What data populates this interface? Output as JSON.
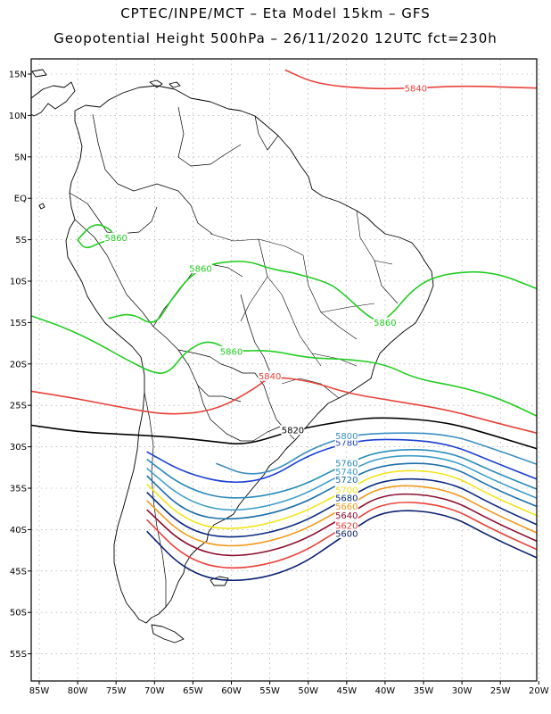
{
  "header": {
    "line1": "CPTEC/INPE/MCT –  Eta Model 15km – GFS",
    "line2": "Geopotential Height 500hPa – 26/11/2020 12UTC fct=230h"
  },
  "axes": {
    "lat_labels": [
      "15N",
      "10N",
      "5N",
      "EQ",
      "5S",
      "10S",
      "15S",
      "20S",
      "25S",
      "30S",
      "35S",
      "40S",
      "45S",
      "50S",
      "55S"
    ],
    "lon_labels": [
      "85W",
      "80W",
      "75W",
      "70W",
      "65W",
      "60W",
      "55W",
      "50W",
      "45W",
      "40W",
      "35W",
      "30W",
      "25W",
      "20W"
    ]
  },
  "map_data": {
    "field": "Geopotential Height 500hPa",
    "grid": true,
    "contours": [
      {
        "value": 5600,
        "label": "5600",
        "color": "#0a1f6e",
        "points": [
          [
            -71,
            -40.2
          ],
          [
            -66,
            -45
          ],
          [
            -60,
            -46.5
          ],
          [
            -52,
            -45
          ],
          [
            -45,
            -40.5
          ],
          [
            -40,
            -37.5
          ],
          [
            -32,
            -38
          ],
          [
            -26,
            -41
          ],
          [
            -20,
            -43.5
          ]
        ]
      },
      {
        "value": 5620,
        "label": "5620",
        "color": "#e8413a",
        "points": [
          [
            -71,
            -38.8
          ],
          [
            -66,
            -43.5
          ],
          [
            -60,
            -45
          ],
          [
            -52,
            -43.5
          ],
          [
            -45,
            -39.5
          ],
          [
            -40,
            -36.5
          ],
          [
            -32,
            -37
          ],
          [
            -26,
            -40
          ],
          [
            -20,
            -42.5
          ]
        ]
      },
      {
        "value": 5640,
        "label": "5640",
        "color": "#8b0d2e",
        "points": [
          [
            -71,
            -37.6
          ],
          [
            -66,
            -42
          ],
          [
            -60,
            -43.5
          ],
          [
            -52,
            -42
          ],
          [
            -45,
            -38.3
          ],
          [
            -40,
            -35.5
          ],
          [
            -32,
            -36
          ],
          [
            -26,
            -39
          ],
          [
            -20,
            -41.5
          ]
        ]
      },
      {
        "value": 5660,
        "label": "5660",
        "color": "#f29a1c",
        "points": [
          [
            -71,
            -36.5
          ],
          [
            -66,
            -41
          ],
          [
            -60,
            -42.3
          ],
          [
            -52,
            -40.8
          ],
          [
            -45,
            -37.2
          ],
          [
            -40,
            -34.5
          ],
          [
            -32,
            -35
          ],
          [
            -26,
            -38
          ],
          [
            -20,
            -40.5
          ]
        ]
      },
      {
        "value": 5680,
        "label": "5680",
        "color": "#0a2a7e",
        "points": [
          [
            -71,
            -35.5
          ],
          [
            -66,
            -40
          ],
          [
            -60,
            -41.2
          ],
          [
            -52,
            -39.8
          ],
          [
            -45,
            -36.2
          ],
          [
            -40,
            -33.8
          ],
          [
            -32,
            -34
          ],
          [
            -26,
            -37
          ],
          [
            -20,
            -39.5
          ]
        ]
      },
      {
        "value": 5700,
        "label": "5700",
        "color": "#f2e51c",
        "points": [
          [
            -71,
            -34.5
          ],
          [
            -66,
            -39
          ],
          [
            -60,
            -40.2
          ],
          [
            -52,
            -38.6
          ],
          [
            -45,
            -35.2
          ],
          [
            -40,
            -32.8
          ],
          [
            -32,
            -33
          ],
          [
            -26,
            -36
          ],
          [
            -20,
            -38.4
          ]
        ]
      },
      {
        "value": 5720,
        "label": "5720",
        "color": "#1e6fa8",
        "points": [
          [
            -71,
            -33.5
          ],
          [
            -66,
            -38
          ],
          [
            -60,
            -39
          ],
          [
            -52,
            -37.5
          ],
          [
            -45,
            -34
          ],
          [
            -40,
            -32
          ],
          [
            -32,
            -32
          ],
          [
            -26,
            -35
          ],
          [
            -20,
            -37.3
          ]
        ]
      },
      {
        "value": 5740,
        "label": "5740",
        "color": "#3d9cc8",
        "points": [
          [
            -71,
            -32.6
          ],
          [
            -66,
            -36.5
          ],
          [
            -60,
            -38
          ],
          [
            -52,
            -36.5
          ],
          [
            -45,
            -33
          ],
          [
            -40,
            -31
          ],
          [
            -32,
            -31.2
          ],
          [
            -26,
            -34
          ],
          [
            -20,
            -36.3
          ]
        ]
      },
      {
        "value": 5760,
        "label": "5760",
        "color": "#2a8bb8",
        "points": [
          [
            -71,
            -31.5
          ],
          [
            -66,
            -35
          ],
          [
            -60,
            -36.5
          ],
          [
            -52,
            -35.3
          ],
          [
            -45,
            -32
          ],
          [
            -40,
            -30.3
          ],
          [
            -32,
            -30.4
          ],
          [
            -26,
            -33
          ],
          [
            -20,
            -35.2
          ]
        ]
      },
      {
        "value": 5780,
        "label": "5780",
        "color": "#1a3fd0",
        "points": [
          [
            -71,
            -30.6
          ],
          [
            -66,
            -33.2
          ],
          [
            -60,
            -34.5
          ],
          [
            -55,
            -33.8
          ],
          [
            -50,
            -31
          ],
          [
            -45,
            -29.5
          ],
          [
            -40,
            -29
          ],
          [
            -32,
            -29.5
          ],
          [
            -26,
            -31.8
          ],
          [
            -20,
            -34
          ]
        ]
      },
      {
        "value": 5800,
        "label": "5800",
        "color": "#3b8ec3",
        "points": [
          [
            -62,
            -32
          ],
          [
            -58,
            -33.5
          ],
          [
            -54,
            -32.8
          ],
          [
            -50,
            -30.4
          ],
          [
            -45,
            -28.7
          ],
          [
            -40,
            -28.3
          ],
          [
            -32,
            -28.4
          ],
          [
            -26,
            -30.2
          ],
          [
            -20,
            -32.2
          ]
        ]
      },
      {
        "value": 5820,
        "label": "5820",
        "color": "#000000",
        "points": [
          [
            -86,
            -27.4
          ],
          [
            -80,
            -28.2
          ],
          [
            -74,
            -28.5
          ],
          [
            -68,
            -28.8
          ],
          [
            -62,
            -29.4
          ],
          [
            -58,
            -29.8
          ],
          [
            -52,
            -28
          ],
          [
            -45,
            -26.8
          ],
          [
            -40,
            -26.4
          ],
          [
            -32,
            -27
          ],
          [
            -26,
            -28.6
          ],
          [
            -20,
            -30.3
          ]
        ]
      },
      {
        "value": 5840,
        "label": "5840",
        "color": "#e8413a",
        "points": [
          [
            -86,
            -23.3
          ],
          [
            -80,
            -24.2
          ],
          [
            -74,
            -25.3
          ],
          [
            -68,
            -26.2
          ],
          [
            -62,
            -25.6
          ],
          [
            -57,
            -23
          ],
          [
            -55,
            -21.5
          ],
          [
            -50,
            -22
          ],
          [
            -45,
            -23.5
          ],
          [
            -40,
            -24.3
          ],
          [
            -32,
            -25.5
          ],
          [
            -26,
            -27
          ],
          [
            -20,
            -28.4
          ]
        ]
      },
      {
        "value": 5840,
        "label": "5840",
        "color": "#e8413a",
        "points": [
          [
            -53,
            15.5
          ],
          [
            -49,
            13.8
          ],
          [
            -42,
            13.2
          ],
          [
            -36,
            13.3
          ],
          [
            -30,
            13.6
          ],
          [
            -20,
            13.3
          ]
        ]
      },
      {
        "value": 5860,
        "label": "5860",
        "color": "#22cc22",
        "points": [
          [
            -86,
            -14.2
          ],
          [
            -82,
            -15.5
          ],
          [
            -78,
            -17.2
          ],
          [
            -74,
            -19.3
          ],
          [
            -70,
            -21.2
          ],
          [
            -68,
            -21
          ],
          [
            -66,
            -18.5
          ],
          [
            -63,
            -17
          ],
          [
            -60,
            -18.5
          ],
          [
            -55,
            -18.3
          ],
          [
            -50,
            -19.3
          ],
          [
            -45,
            -19.4
          ],
          [
            -40,
            -20
          ],
          [
            -36,
            -21.8
          ],
          [
            -30,
            -22.8
          ],
          [
            -25,
            -24.2
          ],
          [
            -20,
            -26.4
          ]
        ]
      },
      {
        "value": 5860,
        "label": "5860",
        "color": "#22cc22",
        "points": [
          [
            -52,
            -9
          ],
          [
            -48,
            -10
          ],
          [
            -46,
            -11
          ],
          [
            -42,
            -14.5
          ],
          [
            -40,
            -15
          ],
          [
            -36,
            -10.5
          ],
          [
            -32,
            -9
          ],
          [
            -26,
            -8.8
          ],
          [
            -20,
            -11
          ]
        ]
      },
      {
        "value": 5860,
        "label": "5860",
        "color": "#22cc22",
        "points": [
          [
            -80,
            -5
          ],
          [
            -79,
            -6.2
          ],
          [
            -77,
            -5.3
          ],
          [
            -75,
            -4.8
          ],
          [
            -76,
            -3.5
          ],
          [
            -78,
            -3
          ],
          [
            -80,
            -5
          ]
        ]
      },
      {
        "value": 5860,
        "label": "5860",
        "color": "#22cc22",
        "points": [
          [
            -76,
            -14.5
          ],
          [
            -73,
            -13.8
          ],
          [
            -70,
            -15.5
          ],
          [
            -68,
            -12.5
          ],
          [
            -66,
            -10
          ],
          [
            -64,
            -8.5
          ],
          [
            -62,
            -7.8
          ],
          [
            -58,
            -7.5
          ],
          [
            -55,
            -8.5
          ],
          [
            -52,
            -9
          ]
        ]
      }
    ]
  }
}
